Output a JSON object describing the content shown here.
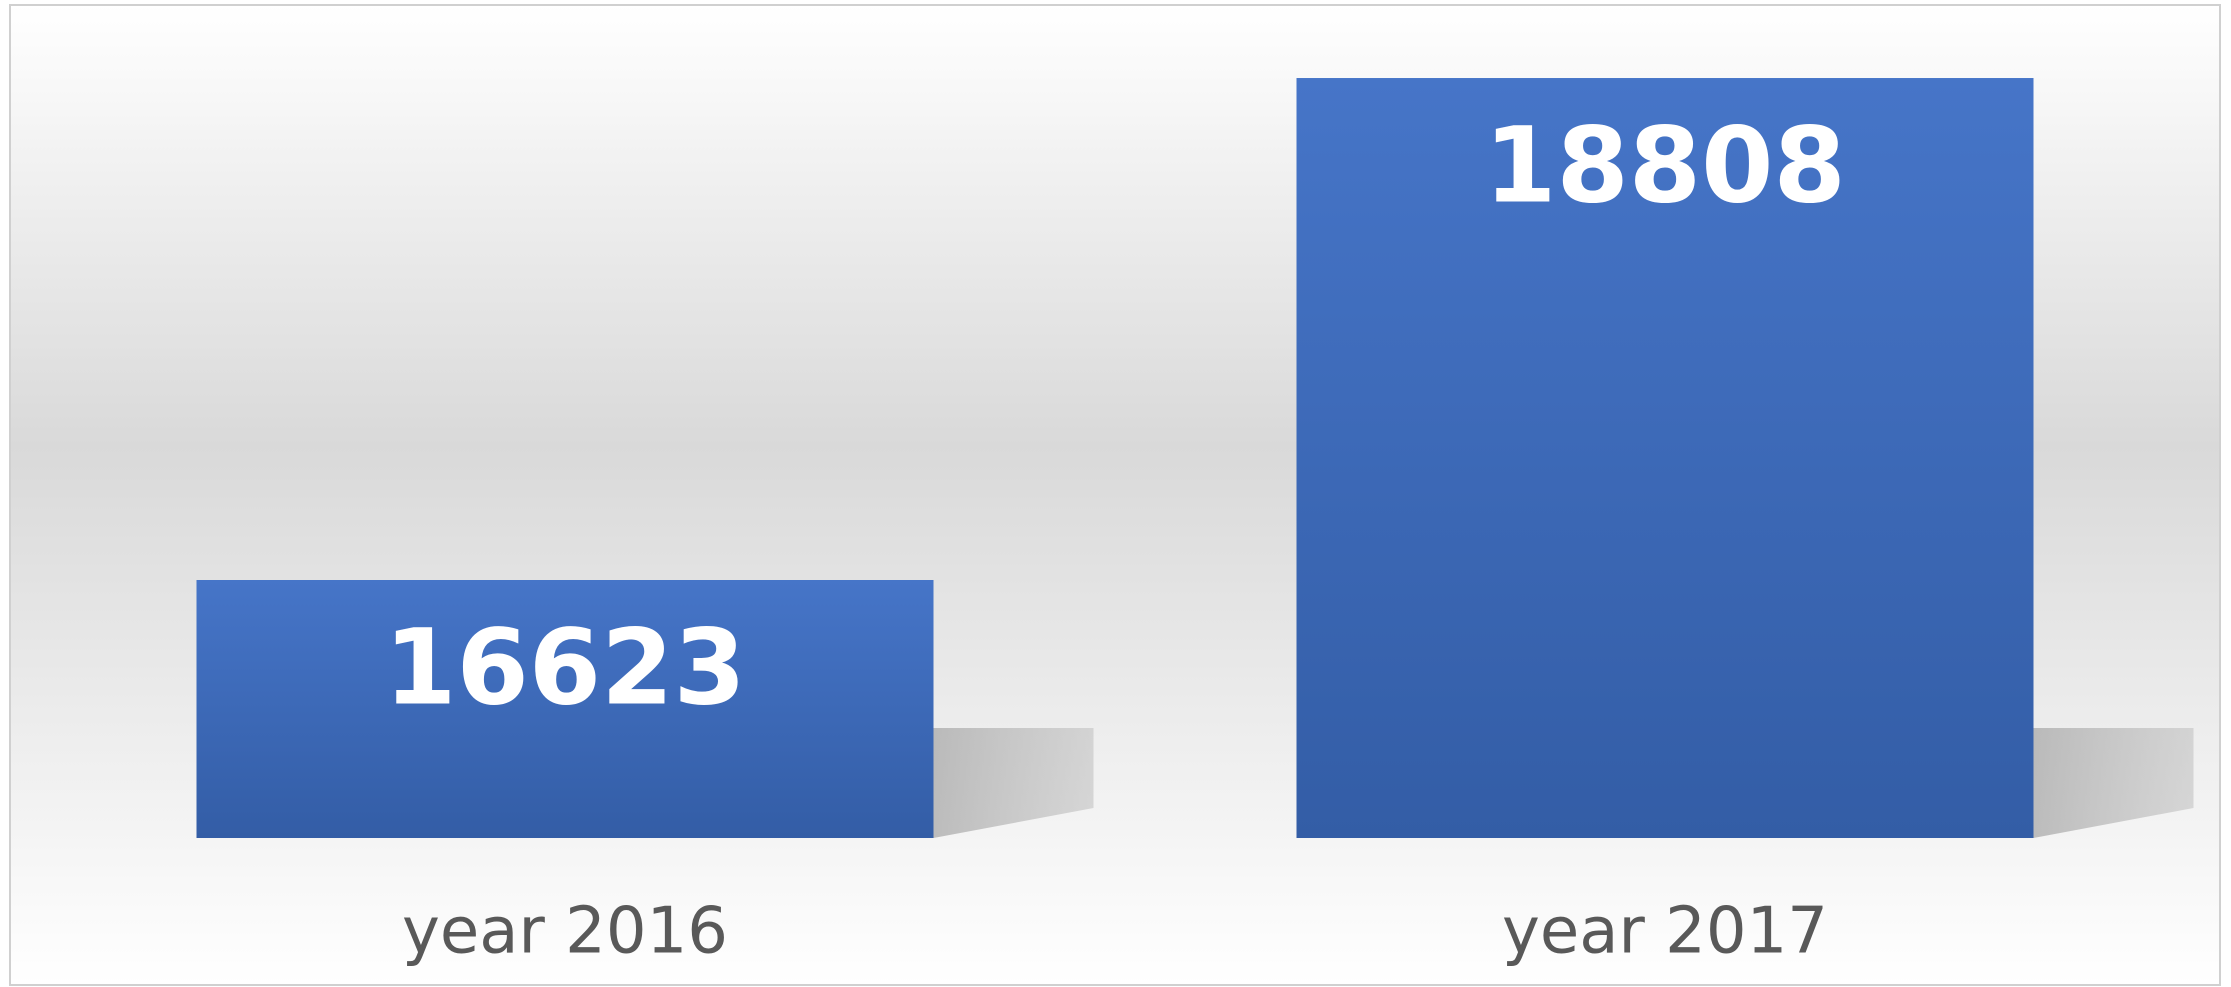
{
  "chart_data": {
    "type": "bar",
    "categories": [
      "year 2016",
      "year 2017"
    ],
    "values": [
      16623,
      18808
    ],
    "color": "#4472c4",
    "ylim": [
      15500,
      19000
    ],
    "grid": false
  }
}
